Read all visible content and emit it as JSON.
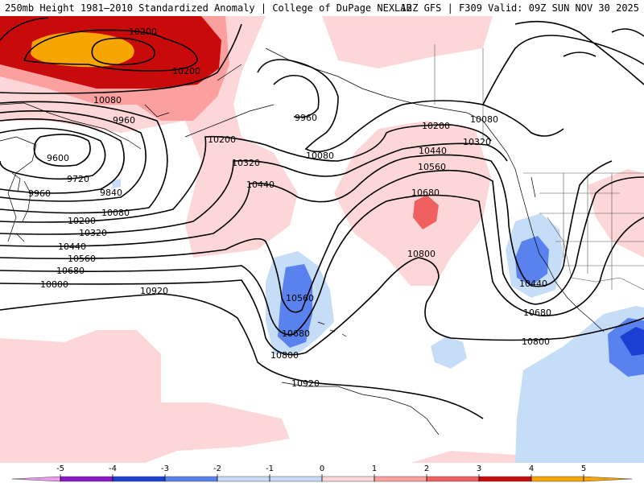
{
  "header": {
    "title_left": "250mb Height 1981–2010 Standardized Anomaly | College of DuPage NEXLAB",
    "title_right": "12Z GFS | F309 Valid: 09Z SUN NOV 30 2025"
  },
  "colors": {
    "a_neg5": "#f09aee",
    "a_neg4": "#8a17c9",
    "a_neg3": "#1a3fd1",
    "a_neg2": "#5a82ee",
    "a_neg1": "#c6ddf8",
    "a_zero": "#ffffff",
    "a_pos1": "#fdd7d7",
    "a_pos2": "#fb9f9f",
    "a_pos3": "#f06060",
    "a_pos4": "#c80a0a",
    "a_pos5": "#f7a500"
  },
  "contour_labels": [
    "10200",
    "10200",
    "10080",
    "9960",
    "9600",
    "9720",
    "9840",
    "9960",
    "10080",
    "10200",
    "10320",
    "10440",
    "10560",
    "10680",
    "10800",
    "10920",
    "10200",
    "10320",
    "10440",
    "9960",
    "10080",
    "10200",
    "10080",
    "10320",
    "10440",
    "10560",
    "10680",
    "10800",
    "10560",
    "10680",
    "10800",
    "10920",
    "10440",
    "10680",
    "10800"
  ],
  "legend": {
    "ticks": [
      "-5",
      "-4",
      "-3",
      "-2",
      "-1",
      "0",
      "1",
      "2",
      "3",
      "4",
      "5"
    ]
  }
}
